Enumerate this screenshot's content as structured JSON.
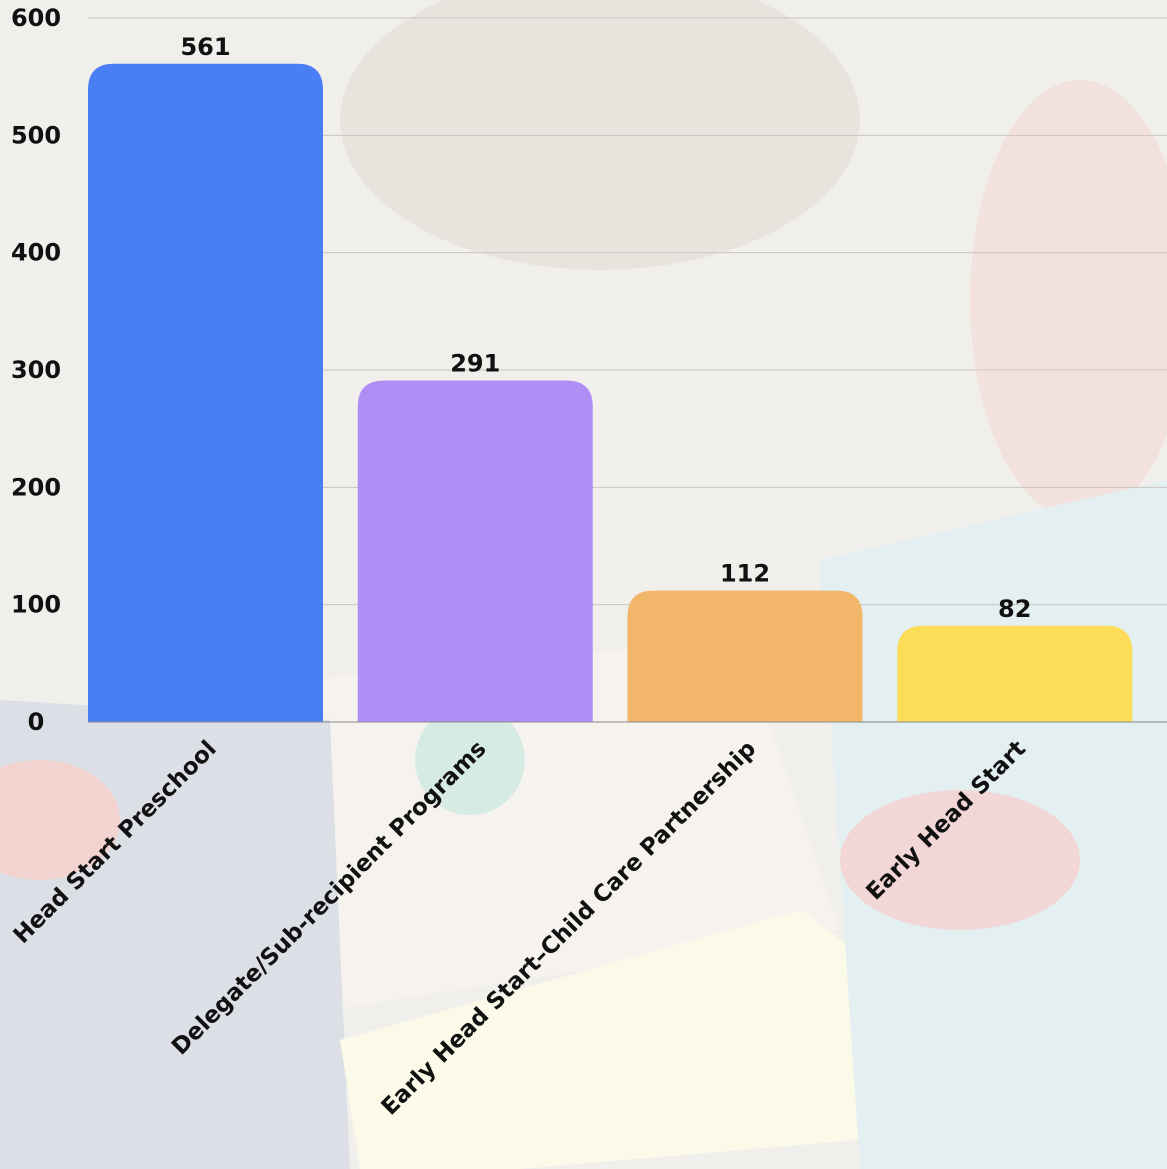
{
  "chart_data": {
    "type": "bar",
    "title": "",
    "xlabel": "",
    "ylabel": "",
    "ylim": [
      0,
      600
    ],
    "yticks": [
      0,
      100,
      200,
      300,
      400,
      500,
      600
    ],
    "grid": true,
    "legend": "none",
    "categories": [
      "Head Start Preschool",
      "Delegate/Sub-recipient Programs",
      "Early Head Start–Child Care Partnership",
      "Early Head Start"
    ],
    "values": [
      561,
      291,
      112,
      82
    ],
    "value_labels": [
      "561",
      "291",
      "112",
      "82"
    ],
    "colors": [
      "#4a7ef5",
      "#b08ef5",
      "#f2b66b",
      "#fcdc58"
    ]
  }
}
